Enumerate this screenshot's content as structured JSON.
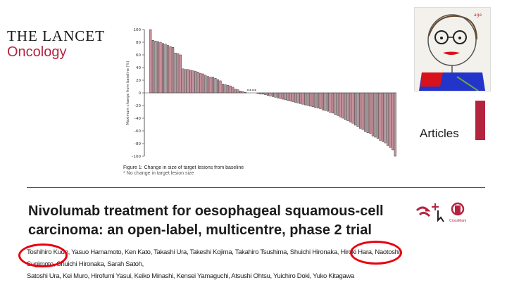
{
  "journal": {
    "name_line1": "THE LANCET",
    "name_line2": "Oncology"
  },
  "figure": {
    "caption": "Figure 1: Change in size of target lesions from baseline",
    "caption_sub": "* No change in target lesion size",
    "chart_data": {
      "type": "bar",
      "ylabel": "Maximum change from baseline (%)",
      "ylim": [
        -100,
        100
      ],
      "yticks": [
        "100",
        "80",
        "60",
        "40",
        "20",
        "0",
        "–20",
        "–40",
        "–60",
        "–80",
        "–100"
      ],
      "grid": false,
      "values": [
        100,
        83,
        82,
        81,
        80,
        78,
        77,
        75,
        73,
        72,
        63,
        62,
        60,
        38,
        37,
        37,
        36,
        35,
        34,
        33,
        31,
        30,
        28,
        26,
        25,
        25,
        23,
        21,
        19,
        14,
        13,
        12,
        11,
        9,
        6,
        5,
        3,
        2,
        1,
        -1,
        -2,
        -2,
        -3,
        -4,
        -5,
        -6,
        -7,
        -8,
        -9,
        -10,
        -11,
        -12,
        -13,
        -14,
        -15,
        -16,
        -17,
        -18,
        -19,
        -20,
        -21,
        -22,
        -23,
        -24,
        -25,
        -27,
        -28,
        -29,
        -31,
        -32,
        -34,
        -36,
        -38,
        -40,
        -42,
        -44,
        -46,
        -48,
        -51,
        -53,
        -56,
        -58,
        -61,
        -63,
        -64,
        -68,
        -70,
        -72,
        -75,
        -77,
        -79,
        -83,
        -86,
        -90,
        -100
      ],
      "zero_marker": "*",
      "zero_marker_count": 4
    }
  },
  "section": "Articles",
  "article": {
    "title_line1": "Nivolumab treatment for oesophageal squamous-cell",
    "title_line2": "carcinoma: an open-label, multicentre, phase 2 trial",
    "authors_line1": "Toshihiro Kudo, Yasuo Hamamoto, Ken Kato, Takashi Ura, Takeshi Kojima, Takahiro Tsushima, Shuichi Hironaka, Hiroki Hara, Naotoshi Sugimoto, Shuichi Hironaka, Sarah Satoh,",
    "authors_line2": "Satoshi Ura, Kei Muro, Hirofumi Yasui, Keiko Minashi, Kensei Yamaguchi, Atsushi Ohtsu, Yuichiro Doki, Yuko Kitagawa"
  },
  "crossmark": {
    "label": "CrossMark"
  },
  "colors": {
    "accent": "#b5243f",
    "highlight": "#e8000e",
    "bars": "#c9939e"
  }
}
